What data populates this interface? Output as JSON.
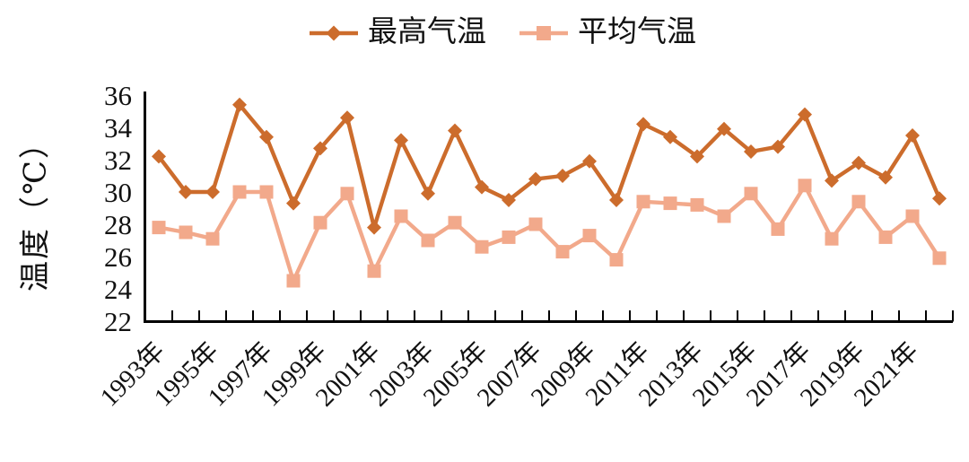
{
  "chart_data": {
    "type": "line",
    "title": "",
    "ylabel": "温度（℃）",
    "xlabel": "",
    "grid": false,
    "legend_position": "top-center",
    "ylim": [
      22,
      36
    ],
    "y_ticks": [
      22,
      24,
      26,
      28,
      30,
      32,
      34,
      36
    ],
    "years": [
      1993,
      1994,
      1995,
      1996,
      1997,
      1998,
      1999,
      2000,
      2001,
      2002,
      2003,
      2004,
      2005,
      2006,
      2007,
      2008,
      2009,
      2010,
      2011,
      2012,
      2013,
      2014,
      2015,
      2016,
      2017,
      2018,
      2019,
      2020,
      2021,
      2022
    ],
    "x_tick_labels": [
      "1993年",
      "1995年",
      "1997年",
      "1999年",
      "2001年",
      "2003年",
      "2005年",
      "2007年",
      "2009年",
      "2011年",
      "2013年",
      "2015年",
      "2017年",
      "2019年",
      "2021年"
    ],
    "series": [
      {
        "id": "max-temp",
        "name": "最高气温",
        "marker": "diamond",
        "color": "#CC6C2C",
        "values": [
          32.2,
          30.0,
          30.0,
          35.4,
          33.4,
          29.3,
          32.7,
          34.6,
          27.8,
          33.2,
          29.9,
          33.8,
          30.3,
          29.5,
          30.8,
          31.0,
          31.9,
          29.5,
          34.2,
          33.4,
          32.2,
          33.9,
          32.5,
          32.8,
          34.8,
          30.7,
          31.8,
          30.9,
          33.5,
          29.6
        ]
      },
      {
        "id": "avg-temp",
        "name": "平均气温",
        "marker": "square",
        "color": "#F2A98B",
        "values": [
          27.8,
          27.5,
          27.1,
          30.0,
          30.0,
          24.5,
          28.1,
          29.9,
          25.1,
          28.5,
          27.0,
          28.1,
          26.6,
          27.2,
          28.0,
          26.3,
          27.3,
          25.8,
          29.4,
          29.3,
          29.2,
          28.5,
          29.9,
          27.7,
          30.4,
          27.1,
          29.4,
          27.2,
          28.5,
          25.9
        ]
      }
    ],
    "axis_color": "#000000"
  }
}
